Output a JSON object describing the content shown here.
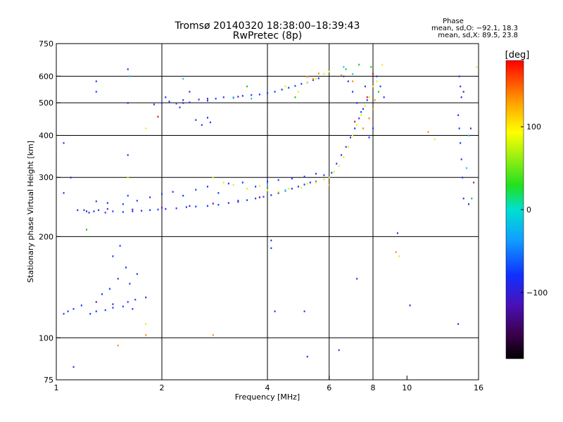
{
  "chart_data": {
    "type": "scatter",
    "title": "Tromsø 20140320 18:38:00–18:39:43",
    "subtitle": "RwPretec (8p)",
    "phase_stats": {
      "heading": "Phase",
      "o_mode": "mean, sd,O: −92.1, 18.3",
      "x_mode": "mean, sd,X: 89.5, 23.8"
    },
    "xlabel": "Frequency [MHz]",
    "ylabel": "Stationary phase Virtual Height [km]",
    "xscale": "log",
    "yscale": "log",
    "xlim": [
      1,
      16
    ],
    "ylim": [
      75,
      750
    ],
    "xticks": [
      1,
      2,
      4,
      6,
      8,
      10,
      16
    ],
    "yticks": [
      75,
      100,
      200,
      300,
      400,
      500,
      600,
      750
    ],
    "xgrid": [
      2,
      4,
      6,
      8
    ],
    "ygrid": [
      100,
      200,
      300,
      400,
      500,
      600
    ],
    "grid": true,
    "colorbar": {
      "label": "[deg]",
      "range": [
        -180,
        180
      ],
      "ticks": [
        100,
        0,
        -100
      ]
    },
    "series": [
      {
        "color": "#1a3cff",
        "points": [
          [
            1.05,
            118
          ],
          [
            1.08,
            120
          ],
          [
            1.12,
            122
          ],
          [
            1.18,
            125
          ],
          [
            1.25,
            118
          ],
          [
            1.3,
            120
          ],
          [
            1.38,
            121
          ],
          [
            1.45,
            123
          ],
          [
            1.55,
            124
          ],
          [
            1.65,
            122
          ],
          [
            1.35,
            135
          ],
          [
            1.42,
            140
          ],
          [
            1.5,
            150
          ],
          [
            1.58,
            162
          ],
          [
            1.45,
            175
          ],
          [
            1.52,
            188
          ],
          [
            1.6,
            128
          ],
          [
            1.68,
            130
          ],
          [
            1.62,
            145
          ],
          [
            1.7,
            155
          ],
          [
            1.2,
            240
          ],
          [
            1.24,
            236
          ],
          [
            1.28,
            238
          ],
          [
            1.32,
            240
          ],
          [
            1.38,
            236
          ],
          [
            1.45,
            238
          ],
          [
            1.55,
            237
          ],
          [
            1.65,
            238
          ],
          [
            1.75,
            239
          ],
          [
            1.85,
            240
          ],
          [
            1.95,
            241
          ],
          [
            2.05,
            242
          ],
          [
            2.2,
            243
          ],
          [
            2.35,
            245
          ],
          [
            2.5,
            246
          ],
          [
            2.7,
            247
          ],
          [
            2.9,
            249
          ],
          [
            3.1,
            252
          ],
          [
            3.3,
            254
          ],
          [
            3.5,
            257
          ],
          [
            3.7,
            260
          ],
          [
            3.9,
            263
          ],
          [
            4.1,
            266
          ],
          [
            4.3,
            270
          ],
          [
            4.5,
            274
          ],
          [
            4.7,
            278
          ],
          [
            4.9,
            282
          ],
          [
            5.1,
            286
          ],
          [
            5.3,
            290
          ],
          [
            5.5,
            292
          ],
          [
            1.3,
            255
          ],
          [
            1.4,
            252
          ],
          [
            1.55,
            250
          ],
          [
            1.7,
            256
          ],
          [
            1.85,
            262
          ],
          [
            2.0,
            268
          ],
          [
            2.15,
            272
          ],
          [
            2.3,
            265
          ],
          [
            2.5,
            276
          ],
          [
            2.7,
            282
          ],
          [
            2.9,
            270
          ],
          [
            3.1,
            288
          ],
          [
            3.4,
            290
          ],
          [
            3.7,
            282
          ],
          [
            4.0,
            292
          ],
          [
            4.3,
            295
          ],
          [
            4.7,
            298
          ],
          [
            5.1,
            302
          ],
          [
            5.5,
            308
          ],
          [
            5.8,
            305
          ],
          [
            1.9,
            495
          ],
          [
            2.0,
            500
          ],
          [
            2.1,
            505
          ],
          [
            2.2,
            498
          ],
          [
            2.3,
            510
          ],
          [
            2.4,
            502
          ],
          [
            2.55,
            512
          ],
          [
            2.7,
            508
          ],
          [
            2.85,
            515
          ],
          [
            3.0,
            520
          ],
          [
            3.2,
            518
          ],
          [
            3.4,
            525
          ],
          [
            3.6,
            528
          ],
          [
            3.8,
            530
          ],
          [
            4.0,
            535
          ],
          [
            4.2,
            540
          ],
          [
            4.4,
            548
          ],
          [
            4.6,
            555
          ],
          [
            4.8,
            562
          ],
          [
            5.0,
            570
          ],
          [
            5.2,
            575
          ],
          [
            5.4,
            585
          ],
          [
            5.6,
            592
          ],
          [
            2.5,
            445
          ],
          [
            2.6,
            430
          ],
          [
            2.75,
            438
          ],
          [
            2.7,
            452
          ],
          [
            2.4,
            540
          ],
          [
            2.25,
            485
          ],
          [
            2.05,
            520
          ],
          [
            6.1,
            310
          ],
          [
            6.3,
            330
          ],
          [
            6.5,
            350
          ],
          [
            6.7,
            370
          ],
          [
            6.9,
            395
          ],
          [
            7.1,
            420
          ],
          [
            7.3,
            450
          ],
          [
            7.5,
            480
          ],
          [
            7.7,
            510
          ],
          [
            7.6,
            560
          ],
          [
            6.6,
            600
          ],
          [
            6.8,
            580
          ],
          [
            7.0,
            540
          ],
          [
            7.2,
            500
          ],
          [
            7.4,
            470
          ],
          [
            7.8,
            395
          ],
          [
            8.0,
            420
          ],
          [
            8.2,
            600
          ],
          [
            8.4,
            560
          ],
          [
            8.6,
            520
          ],
          [
            1.05,
            380
          ],
          [
            1.1,
            300
          ],
          [
            1.6,
            630
          ],
          [
            1.6,
            500
          ],
          [
            1.6,
            350
          ],
          [
            1.3,
            580
          ],
          [
            1.3,
            540
          ],
          [
            1.05,
            270
          ],
          [
            1.12,
            82
          ],
          [
            1.6,
            265
          ],
          [
            4.1,
            195
          ],
          [
            4.1,
            185
          ],
          [
            4.2,
            120
          ],
          [
            5.1,
            120
          ],
          [
            5.2,
            88
          ],
          [
            6.4,
            92
          ],
          [
            7.2,
            150
          ],
          [
            9.4,
            205
          ],
          [
            10.2,
            125
          ],
          [
            14.0,
            110
          ],
          [
            14.1,
            600
          ],
          [
            14.2,
            560
          ],
          [
            14.3,
            520
          ],
          [
            14.0,
            460
          ],
          [
            14.1,
            420
          ],
          [
            14.2,
            380
          ],
          [
            14.3,
            340
          ],
          [
            14.4,
            300
          ],
          [
            14.5,
            260
          ],
          [
            15.0,
            250
          ]
        ]
      },
      {
        "color": "#6a1aa8",
        "points": [
          [
            1.15,
            240
          ],
          [
            1.22,
            238
          ],
          [
            1.4,
            242
          ],
          [
            1.65,
            241
          ],
          [
            2.0,
            244
          ],
          [
            2.4,
            247
          ],
          [
            2.8,
            251
          ],
          [
            3.3,
            256
          ],
          [
            3.8,
            262
          ],
          [
            4.3,
            270
          ],
          [
            1.8,
            132
          ],
          [
            1.45,
            126
          ],
          [
            1.3,
            128
          ],
          [
            2.3,
            500
          ],
          [
            2.7,
            515
          ],
          [
            3.3,
            522
          ],
          [
            14.5,
            540
          ],
          [
            15.2,
            420
          ]
        ]
      },
      {
        "color": "#18c8e8",
        "points": [
          [
            1.62,
            600
          ],
          [
            2.3,
            590
          ],
          [
            3.2,
            520
          ],
          [
            3.6,
            515
          ],
          [
            4.0,
            285
          ],
          [
            4.5,
            275
          ],
          [
            6.6,
            640
          ],
          [
            7.0,
            610
          ],
          [
            15.0,
            400
          ],
          [
            14.8,
            320
          ]
        ]
      },
      {
        "color": "#22c622",
        "points": [
          [
            1.22,
            210
          ],
          [
            3.5,
            560
          ],
          [
            4.8,
            520
          ],
          [
            6.7,
            630
          ],
          [
            7.3,
            650
          ],
          [
            7.9,
            640
          ],
          [
            8.3,
            540
          ],
          [
            15.3,
            260
          ]
        ]
      },
      {
        "color": "#ecec12",
        "points": [
          [
            2.8,
            300
          ],
          [
            3.0,
            290
          ],
          [
            3.2,
            285
          ],
          [
            3.5,
            278
          ],
          [
            3.8,
            283
          ],
          [
            4.0,
            275
          ],
          [
            4.3,
            272
          ],
          [
            4.6,
            278
          ],
          [
            5.0,
            280
          ],
          [
            5.2,
            288
          ],
          [
            5.5,
            290
          ],
          [
            5.8,
            296
          ],
          [
            6.0,
            300
          ],
          [
            6.2,
            312
          ],
          [
            6.4,
            325
          ],
          [
            6.6,
            345
          ],
          [
            6.8,
            370
          ],
          [
            7.0,
            400
          ],
          [
            7.2,
            430
          ],
          [
            7.4,
            460
          ],
          [
            7.6,
            490
          ],
          [
            7.8,
            520
          ],
          [
            8.0,
            560
          ],
          [
            8.2,
            580
          ],
          [
            5.2,
            575
          ],
          [
            5.5,
            590
          ],
          [
            5.8,
            610
          ],
          [
            6.0,
            620
          ],
          [
            1.8,
            420
          ],
          [
            1.6,
            300
          ],
          [
            4.5,
            560
          ],
          [
            4.9,
            540
          ],
          [
            8.5,
            650
          ],
          [
            9.5,
            175
          ],
          [
            12.0,
            390
          ],
          [
            15.8,
            640
          ],
          [
            1.8,
            110
          ]
        ]
      },
      {
        "color": "#ff8a10",
        "points": [
          [
            5.4,
            590
          ],
          [
            5.6,
            612
          ],
          [
            5.2,
            598
          ],
          [
            6.5,
            605
          ],
          [
            7.0,
            580
          ],
          [
            7.5,
            420
          ],
          [
            7.8,
            450
          ],
          [
            8.0,
            480
          ],
          [
            8.1,
            510
          ],
          [
            9.3,
            180
          ],
          [
            11.5,
            410
          ],
          [
            2.8,
            102
          ],
          [
            1.5,
            95
          ],
          [
            1.8,
            102
          ],
          [
            6.0,
            285
          ]
        ]
      },
      {
        "color": "#e8101a",
        "points": [
          [
            7.1,
            440
          ],
          [
            7.7,
            520
          ],
          [
            8.0,
            610
          ],
          [
            1.95,
            455
          ],
          [
            15.5,
            290
          ]
        ]
      }
    ]
  }
}
